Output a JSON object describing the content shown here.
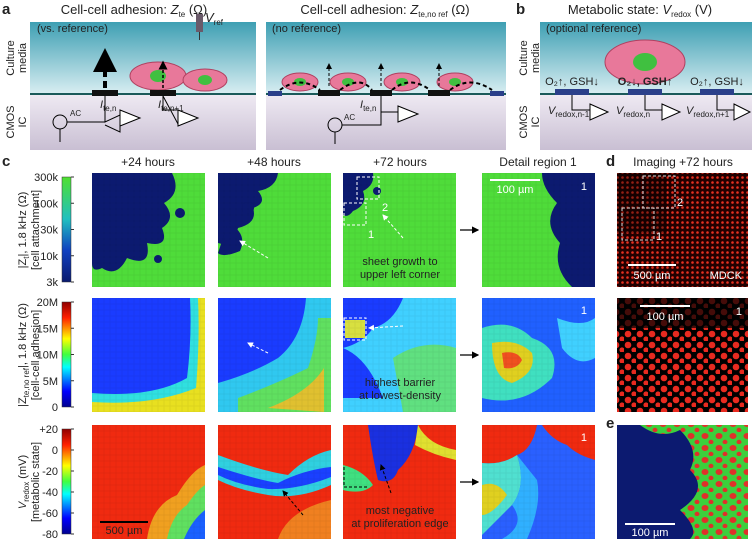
{
  "panel_a": {
    "label": "a",
    "left": {
      "title": "Cell-cell adhesion: ",
      "symbol": "Z",
      "subscript": "te",
      "unit": " (Ω)",
      "ref_symbol": "V",
      "ref_subscript": "ref",
      "note": "(vs. reference)",
      "ac": "AC",
      "current_1": "I",
      "current_1_sub": "te,n",
      "current_2": "I",
      "current_2_sub": "te,n+1"
    },
    "right": {
      "title": "Cell-cell adhesion: ",
      "symbol": "Z",
      "subscript": "te,no ref",
      "unit": " (Ω)",
      "note": "(no reference)",
      "ac": "AC",
      "current": "I",
      "current_sub": "te,n"
    },
    "side_labels": {
      "top": [
        "Culture",
        "media"
      ],
      "bottom": [
        "CMOS",
        "IC"
      ]
    }
  },
  "panel_b": {
    "label": "b",
    "title": "Metabolic state: ",
    "symbol": "V",
    "subscript": "redox",
    "unit": " (V)",
    "note": "(optional reference)",
    "side_labels": {
      "top": [
        "Culture",
        "media"
      ],
      "bottom": [
        "CMOS",
        "IC"
      ]
    },
    "chemistry": [
      "O₂↑, GSH↓",
      "O₂↓, GSH↑",
      "O₂↑, GSH↓"
    ],
    "voltages": [
      {
        "symbol": "V",
        "subscript": "redox,n-1"
      },
      {
        "symbol": "V",
        "subscript": "redox,n"
      },
      {
        "symbol": "V",
        "subscript": "redox,n+1"
      }
    ]
  },
  "panel_c": {
    "label": "c",
    "columns": [
      "+24 hours",
      "+48 hours",
      "+72 hours",
      "Detail region 1"
    ],
    "rows": [
      {
        "quantity": "|Z",
        "quantity_sub": "t",
        "quantity_rest": "|, 1.8 kHz (Ω)",
        "description": "[cell attachment]",
        "colorbar_ticks": [
          "300k",
          "100k",
          "30k",
          "10k",
          "3k"
        ],
        "annotation": [
          "sheet growth to",
          "upper left corner"
        ],
        "detail_label": "1",
        "regions": [
          "2",
          "1"
        ]
      },
      {
        "quantity": "|Z",
        "quantity_sub": "te,no ref",
        "quantity_rest": "|, 1.8 kHz (Ω)",
        "description": "[cell-cell adhesion]",
        "colorbar_ticks": [
          "20M",
          "15M",
          "10M",
          "5M",
          "0"
        ],
        "annotation": [
          "highest barrier",
          "at lowest-density"
        ],
        "detail_label": "1"
      },
      {
        "quantity": "V",
        "quantity_sub": "redox",
        "quantity_rest": " (mV)",
        "description": "[metabolic state]",
        "colorbar_ticks": [
          "+20",
          "0",
          "-20",
          "-40",
          "-60",
          "-80"
        ],
        "annotation": [
          "most negative",
          "at proliferation edge"
        ],
        "detail_label": "1"
      }
    ],
    "scale_bar": "500 µm",
    "detail_scale_bar": "100 µm"
  },
  "panel_d": {
    "label": "d",
    "title": "Imaging +72 hours",
    "regions": [
      "2",
      "1"
    ],
    "scale_bar": "500 µm",
    "cell_line": "MDCK",
    "detail_scale_bar": "100 µm",
    "detail_label": "1"
  },
  "panel_e": {
    "label": "e",
    "scale_bar": "100 µm"
  }
}
